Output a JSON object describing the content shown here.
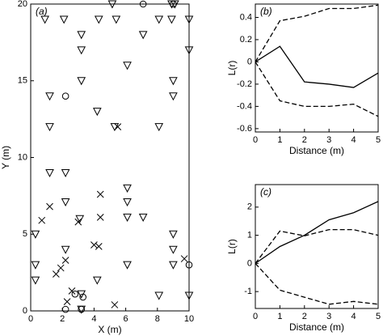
{
  "chart_data": [
    {
      "type": "scatter",
      "annotation": "(a)",
      "xlabel": "X (m)",
      "ylabel": "Y (m)",
      "xlim": [
        0,
        10
      ],
      "ylim": [
        0,
        20
      ],
      "xticks": [
        0,
        2,
        4,
        6,
        8,
        10
      ],
      "yticks": [
        0,
        5,
        10,
        15,
        20
      ],
      "series": [
        {
          "marker": "triangle-down",
          "color": "#000000",
          "x": [
            5.15,
            8.9,
            9.1,
            0.9,
            2.1,
            4.3,
            5.4,
            8.1,
            8.9,
            10,
            3.2,
            7.1,
            3.2,
            10,
            6.1,
            3.2,
            9.0,
            1.2,
            9.0,
            4.2,
            1.2,
            5.3,
            8.1,
            1.2,
            2.2,
            6.1,
            2.2,
            6.1,
            6.1,
            7.1,
            3.1,
            0.3,
            9.0,
            9.0,
            2.2,
            0.3,
            6.1,
            9.0,
            0.3,
            4.2,
            3.2,
            8.1,
            10,
            3.2
          ],
          "values": [
            20,
            20,
            20,
            19,
            19,
            19,
            19,
            19,
            19,
            19,
            18,
            18,
            17,
            17,
            16,
            15,
            15,
            14,
            14,
            13,
            12,
            12,
            12,
            9,
            9,
            8,
            7.1,
            7.1,
            6.1,
            6.1,
            6.0,
            5.0,
            5.0,
            4.0,
            4.0,
            3.0,
            3.0,
            3.0,
            2.0,
            2.0,
            1.1,
            1.0,
            1.0,
            0.1
          ]
        },
        {
          "marker": "circle",
          "color": "#000000",
          "x": [
            7.1,
            9.0,
            2.2,
            10,
            2.8,
            3.3,
            2.2,
            3.2
          ],
          "values": [
            20,
            20,
            14,
            3.0,
            1.1,
            0.9,
            0.1,
            0.1
          ]
        },
        {
          "marker": "x",
          "color": "#000000",
          "x": [
            5.5,
            4.4,
            1.2,
            0.7,
            4.4,
            3.0,
            4.0,
            4.3,
            2.2,
            1.9,
            1.6,
            9.7,
            2.6,
            2.3,
            5.3
          ],
          "values": [
            12,
            7.6,
            6.8,
            5.9,
            6.1,
            5.8,
            4.3,
            4.2,
            3.3,
            2.8,
            2.4,
            3.4,
            1.3,
            0.6,
            0.4
          ]
        }
      ]
    },
    {
      "type": "line",
      "annotation": "(b)",
      "xlabel": "Distance (m)",
      "ylabel": "L(r)",
      "xlim": [
        0,
        5
      ],
      "ylim": [
        -0.63,
        0.52
      ],
      "xticks": [
        0,
        1,
        2,
        3,
        4,
        5
      ],
      "yticks": [
        -0.6,
        -0.4,
        -0.2,
        0,
        0.2,
        0.4
      ],
      "x": [
        0,
        1,
        2,
        3,
        4,
        5
      ],
      "series": [
        {
          "linestyle": "solid",
          "color": "#000000",
          "values": [
            0,
            0.14,
            -0.18,
            -0.2,
            -0.23,
            -0.1
          ]
        },
        {
          "linestyle": "dashed",
          "color": "#000000",
          "values": [
            0,
            0.37,
            0.41,
            0.48,
            0.48,
            0.51
          ]
        },
        {
          "linestyle": "dashed",
          "color": "#000000",
          "values": [
            0,
            -0.35,
            -0.4,
            -0.4,
            -0.38,
            -0.49
          ]
        }
      ]
    },
    {
      "type": "line",
      "annotation": "(c)",
      "xlabel": "Distance (m)",
      "ylabel": "L(r)",
      "xlim": [
        0,
        5
      ],
      "ylim": [
        -1.6,
        2.8
      ],
      "xticks": [
        0,
        1,
        2,
        3,
        4,
        5
      ],
      "yticks": [
        -1,
        0,
        1,
        2
      ],
      "x": [
        0,
        1,
        2,
        3,
        4,
        5
      ],
      "series": [
        {
          "linestyle": "solid",
          "color": "#000000",
          "values": [
            0,
            0.6,
            1.0,
            1.55,
            1.8,
            2.2
          ]
        },
        {
          "linestyle": "dashed",
          "color": "#000000",
          "values": [
            0,
            1.15,
            0.98,
            1.2,
            1.2,
            1.0
          ]
        },
        {
          "linestyle": "dashed",
          "color": "#000000",
          "values": [
            0,
            -0.95,
            -1.2,
            -1.45,
            -1.35,
            -1.45
          ]
        }
      ]
    }
  ]
}
